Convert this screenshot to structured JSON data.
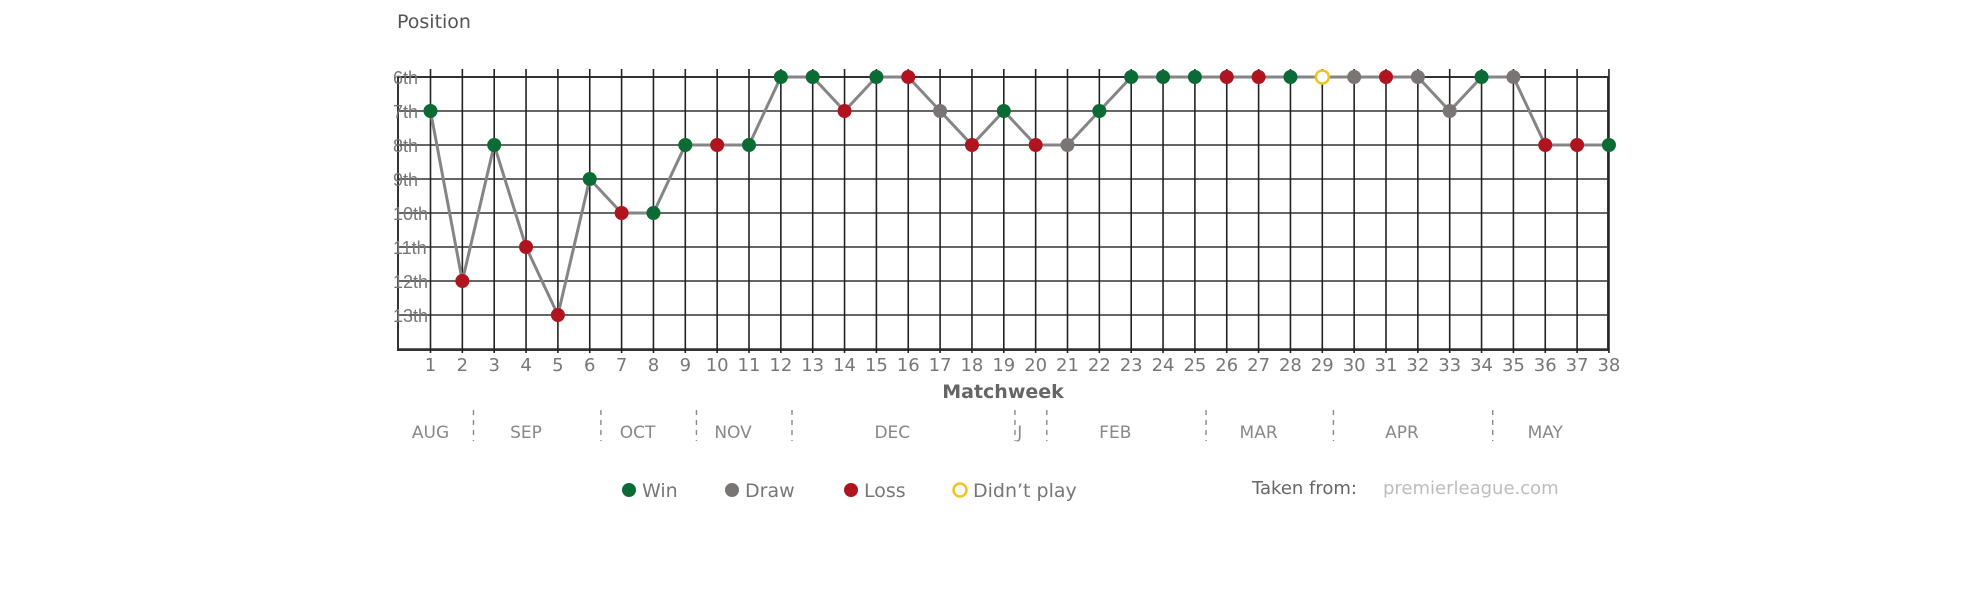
{
  "chart_data": {
    "type": "line",
    "title": "Position",
    "xlabel": "Matchweek",
    "ylabel": "",
    "x": [
      1,
      2,
      3,
      4,
      5,
      6,
      7,
      8,
      9,
      10,
      11,
      12,
      13,
      14,
      15,
      16,
      17,
      18,
      19,
      20,
      21,
      22,
      23,
      24,
      25,
      26,
      27,
      28,
      29,
      30,
      31,
      32,
      33,
      34,
      35,
      36,
      37,
      38
    ],
    "positions": [
      7,
      12,
      8,
      11,
      13,
      9,
      10,
      10,
      8,
      8,
      8,
      6,
      6,
      7,
      6,
      6,
      7,
      8,
      7,
      8,
      8,
      7,
      6,
      6,
      6,
      6,
      6,
      6,
      6,
      6,
      6,
      6,
      7,
      6,
      6,
      8,
      8,
      8
    ],
    "results": [
      "W",
      "L",
      "W",
      "L",
      "L",
      "W",
      "L",
      "W",
      "W",
      "L",
      "W",
      "W",
      "W",
      "L",
      "W",
      "L",
      "D",
      "L",
      "W",
      "L",
      "D",
      "W",
      "W",
      "W",
      "W",
      "L",
      "L",
      "W",
      "N",
      "D",
      "L",
      "D",
      "D",
      "W",
      "D",
      "L",
      "L",
      "W"
    ],
    "y_ticks": [
      "6th",
      "7th",
      "8th",
      "9th",
      "10th",
      "11th",
      "12th",
      "13th"
    ],
    "y_range": [
      6,
      14
    ],
    "x_ticks": [
      "1",
      "2",
      "3",
      "4",
      "5",
      "6",
      "7",
      "8",
      "9",
      "10",
      "11",
      "12",
      "13",
      "14",
      "15",
      "16",
      "17",
      "18",
      "19",
      "20",
      "21",
      "22",
      "23",
      "24",
      "25",
      "26",
      "27",
      "28",
      "29",
      "30",
      "31",
      "32",
      "33",
      "34",
      "35",
      "36",
      "37",
      "38"
    ],
    "grid": true,
    "months": [
      {
        "label": "AUG",
        "from": 1,
        "to": 2
      },
      {
        "label": "SEP",
        "from": 3,
        "to": 6
      },
      {
        "label": "OCT",
        "from": 7,
        "to": 9
      },
      {
        "label": "NOV",
        "from": 10,
        "to": 12
      },
      {
        "label": "DEC",
        "from": 13,
        "to": 19
      },
      {
        "label": "J",
        "from": 20,
        "to": 20
      },
      {
        "label": "FEB",
        "from": 21,
        "to": 25
      },
      {
        "label": "MAR",
        "from": 26,
        "to": 29
      },
      {
        "label": "APR",
        "from": 30,
        "to": 34
      },
      {
        "label": "MAY",
        "from": 35,
        "to": 38
      }
    ],
    "legend": [
      {
        "key": "W",
        "label": "Win",
        "color": "#0b6b35",
        "hollow": false
      },
      {
        "key": "D",
        "label": "Draw",
        "color": "#7a7575",
        "hollow": false
      },
      {
        "key": "L",
        "label": "Loss",
        "color": "#b0141f",
        "hollow": false
      },
      {
        "key": "N",
        "label": "Didn’t play",
        "color": "#f2c419",
        "hollow": true
      }
    ],
    "legend_placement": "bottom",
    "line_color": "#858585"
  },
  "source": {
    "label": "Taken from:",
    "value": "premierleague.com"
  }
}
